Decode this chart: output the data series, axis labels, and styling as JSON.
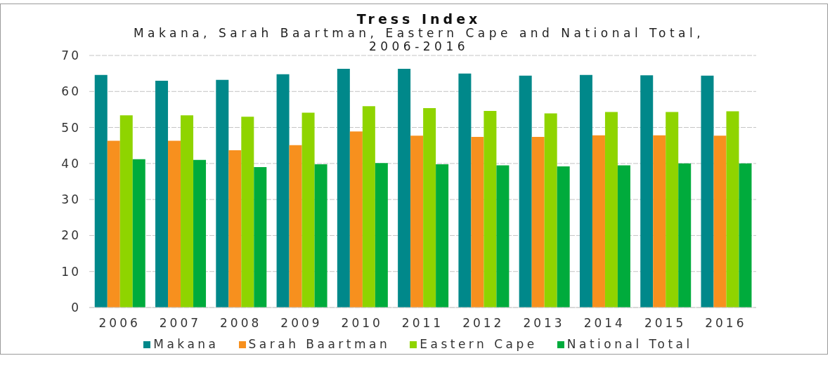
{
  "chart_data": {
    "type": "bar",
    "title": "Tress Index",
    "subtitle": "Makana, Sarah Baartman, Eastern Cape and National Total, 2006-2016",
    "categories": [
      "2006",
      "2007",
      "2008",
      "2009",
      "2010",
      "2011",
      "2012",
      "2013",
      "2014",
      "2015",
      "2016"
    ],
    "series": [
      {
        "name": "Makana",
        "color": "#00888a",
        "values": [
          64.6,
          63.0,
          63.2,
          64.8,
          66.3,
          66.3,
          65.0,
          64.4,
          64.6,
          64.5,
          64.4
        ]
      },
      {
        "name": "Sarah Baartman",
        "color": "#f7901e",
        "values": [
          46.3,
          46.3,
          43.7,
          45.1,
          48.9,
          47.7,
          47.4,
          47.4,
          47.8,
          47.8,
          47.7
        ]
      },
      {
        "name": "Eastern Cape",
        "color": "#8fd400",
        "values": [
          53.4,
          53.4,
          53.0,
          54.1,
          55.9,
          55.4,
          54.6,
          53.9,
          54.3,
          54.3,
          54.5
        ]
      },
      {
        "name": "National Total",
        "color": "#00ab3c",
        "values": [
          41.2,
          41.0,
          39.0,
          39.8,
          40.1,
          39.8,
          39.5,
          39.2,
          39.5,
          40.0,
          40.0
        ]
      }
    ],
    "ylim": [
      0,
      70
    ],
    "yticks": [
      0,
      10,
      20,
      30,
      40,
      50,
      60,
      70
    ],
    "grid": "y",
    "legend": "bottom"
  }
}
